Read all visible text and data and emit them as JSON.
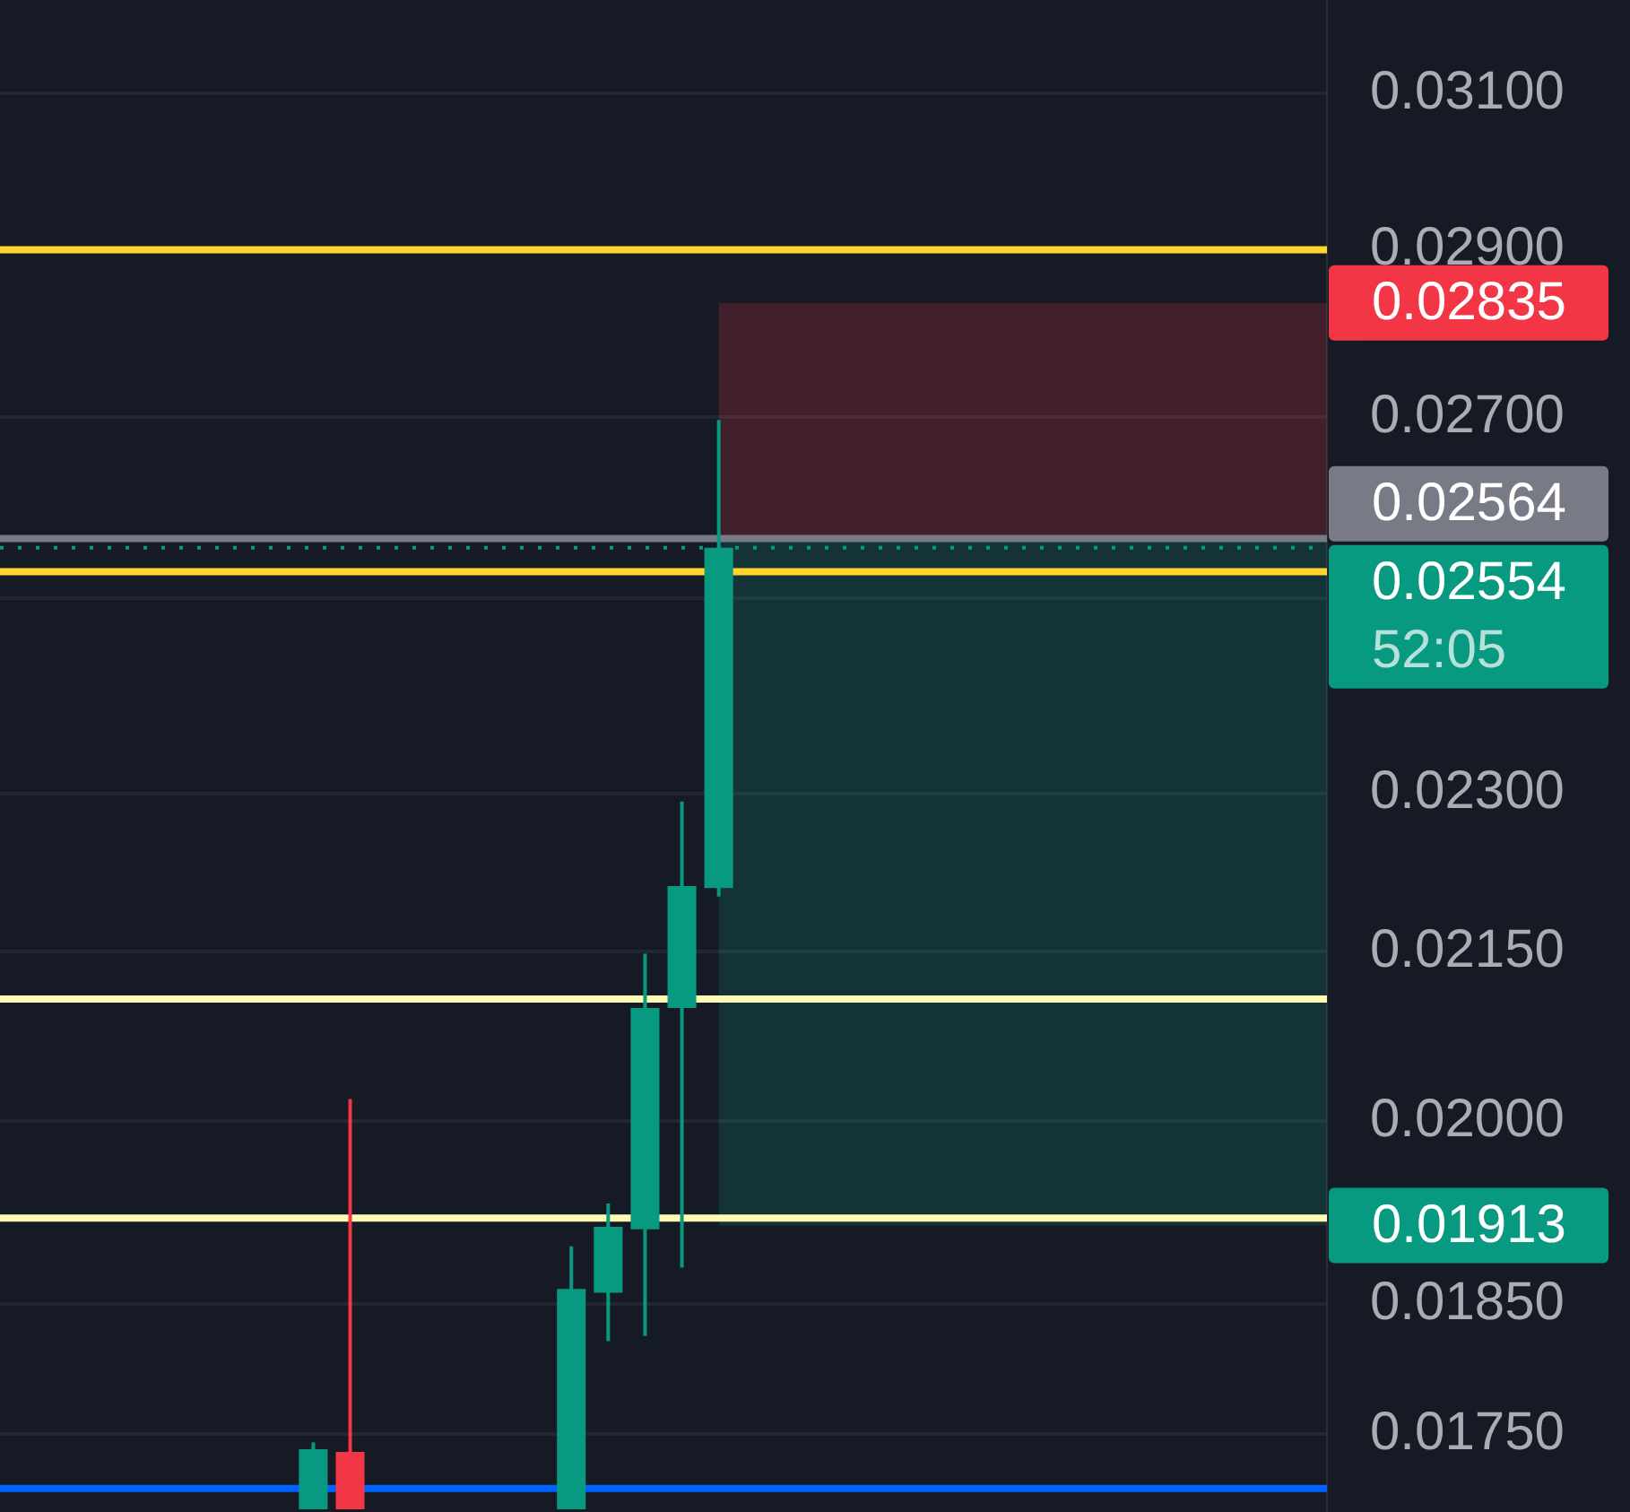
{
  "chart_data": {
    "type": "candlestick",
    "categories": [
      null,
      null,
      null,
      null,
      null,
      null,
      null,
      null,
      null,
      null,
      null,
      null,
      null,
      null,
      null,
      null,
      null,
      null,
      null,
      null,
      null,
      null,
      null,
      null,
      null,
      null,
      null,
      null,
      null,
      null,
      null,
      null,
      null,
      null,
      null,
      null
    ],
    "ohlc": [
      null,
      null,
      null,
      null,
      null,
      null,
      null,
      null,
      [
        0.01695,
        0.01744,
        0.01695,
        0.01739
      ],
      [
        0.01737,
        0.02019,
        0.01695,
        0.01695
      ],
      null,
      null,
      null,
      null,
      null,
      [
        0.01695,
        0.01896,
        0.01695,
        0.01862
      ],
      [
        0.01859,
        0.01931,
        0.01821,
        0.01912
      ],
      [
        0.0191,
        0.02148,
        0.01825,
        0.02099
      ],
      [
        0.02099,
        0.02292,
        0.01879,
        0.02211
      ],
      [
        0.02209,
        0.02697,
        0.02201,
        0.02554
      ],
      null,
      null,
      null,
      null,
      null,
      null,
      null,
      null,
      null,
      null,
      null,
      null,
      null,
      null,
      null,
      null
    ],
    "colors": [
      null,
      null,
      null,
      null,
      null,
      null,
      null,
      null,
      "#089981",
      "#f23645",
      null,
      null,
      null,
      null,
      null,
      "#089981",
      "#089981",
      "#089981",
      "#089981",
      "#089981",
      null,
      null,
      null,
      null,
      null,
      null,
      null,
      null,
      null,
      null,
      null,
      null,
      null,
      null,
      null,
      null
    ],
    "ylim": [
      0.01693,
      0.03226
    ],
    "yticks": [
      {
        "value": 0.031,
        "label": "0.03100"
      },
      {
        "value": 0.029,
        "label": "0.02900"
      },
      {
        "value": 0.027,
        "label": "0.02700"
      },
      {
        "value": 0.025,
        "label": null
      },
      {
        "value": 0.023,
        "label": "0.02300"
      },
      {
        "value": 0.0215,
        "label": "0.02150"
      },
      {
        "value": 0.02,
        "label": "0.02000"
      },
      {
        "value": 0.0185,
        "label": "0.01850"
      },
      {
        "value": 0.0175,
        "label": "0.01750"
      }
    ],
    "log": true,
    "grid": "y",
    "legend": false,
    "tick_labels": "y",
    "ref_lines": [
      {
        "axis": "y",
        "value": 0.029,
        "color": "#ffd42e",
        "line_style": "solid"
      },
      {
        "axis": "y",
        "value": 0.02528,
        "color": "#ffd42e",
        "line_style": "solid"
      },
      {
        "axis": "y",
        "value": 0.02107,
        "color": "#fffbb4",
        "line_style": "solid"
      },
      {
        "axis": "y",
        "value": 0.01919,
        "color": "#fffbb4",
        "line_style": "solid"
      },
      {
        "axis": "y",
        "value": 0.0171,
        "color": "#0062ff",
        "line_style": "solid"
      },
      {
        "axis": "y",
        "value": 0.02564,
        "color": "#787b86",
        "line_style": "solid",
        "label": "0.02564"
      },
      {
        "axis": "y",
        "value": 0.02554,
        "color": "#089981",
        "line_style": "dotted",
        "label": "0.02554"
      }
    ],
    "bands": [
      {
        "axis": "y",
        "from": 0.02564,
        "to": 0.02835,
        "color": "#f23645",
        "label": "0.02835"
      },
      {
        "axis": "y",
        "from": 0.01913,
        "to": 0.02564,
        "color": "#089981",
        "label": "0.01913"
      }
    ],
    "annotations": [
      "52:05"
    ]
  }
}
